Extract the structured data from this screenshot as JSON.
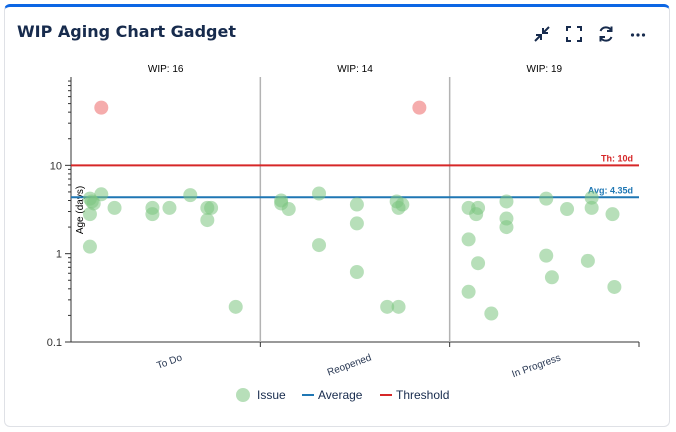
{
  "gadget": {
    "title": "WIP Aging Chart Gadget",
    "toolbar": {
      "minimize": "minimize-icon",
      "fullscreen": "fullscreen-icon",
      "refresh": "refresh-icon",
      "more": "more-icon"
    }
  },
  "chart_data": {
    "type": "scatter",
    "title": "",
    "xlabel": "",
    "ylabel": "Age (days)",
    "yscale": "log",
    "ylim": [
      0.1,
      100
    ],
    "y_ticks": [
      {
        "value": 10,
        "label": "10"
      },
      {
        "value": 1,
        "label": "1"
      },
      {
        "value": 0.1,
        "label": "0.1"
      }
    ],
    "colors": {
      "issue": "#7cc47f",
      "issue_over_threshold": "#f08080",
      "average": "#1f77b4",
      "threshold": "#d62728"
    },
    "average": {
      "value": 4.35,
      "label": "Avg: 4.35d"
    },
    "threshold": {
      "value": 10,
      "label": "Th: 10d"
    },
    "legend": [
      {
        "name": "Issue",
        "kind": "dot"
      },
      {
        "name": "Average",
        "kind": "line"
      },
      {
        "name": "Threshold",
        "kind": "line"
      }
    ],
    "columns": [
      {
        "name": "To Do",
        "wip_label": "WIP: 16",
        "points": [
          {
            "jitter": 0.16,
            "age": 45
          },
          {
            "jitter": 0.1,
            "age": 4.2
          },
          {
            "jitter": 0.11,
            "age": 3.9
          },
          {
            "jitter": 0.12,
            "age": 3.7
          },
          {
            "jitter": 0.16,
            "age": 4.7
          },
          {
            "jitter": 0.23,
            "age": 3.3
          },
          {
            "jitter": 0.1,
            "age": 2.8
          },
          {
            "jitter": 0.43,
            "age": 3.3
          },
          {
            "jitter": 0.43,
            "age": 2.8
          },
          {
            "jitter": 0.52,
            "age": 3.3
          },
          {
            "jitter": 0.63,
            "age": 4.6
          },
          {
            "jitter": 0.72,
            "age": 3.3
          },
          {
            "jitter": 0.74,
            "age": 3.3
          },
          {
            "jitter": 0.72,
            "age": 2.4
          },
          {
            "jitter": 0.1,
            "age": 1.2
          },
          {
            "jitter": 0.87,
            "age": 0.25
          }
        ]
      },
      {
        "name": "Reopened",
        "wip_label": "WIP: 14",
        "points": [
          {
            "jitter": 0.84,
            "age": 45
          },
          {
            "jitter": 0.11,
            "age": 4.0
          },
          {
            "jitter": 0.11,
            "age": 3.7
          },
          {
            "jitter": 0.15,
            "age": 3.2
          },
          {
            "jitter": 0.31,
            "age": 4.8
          },
          {
            "jitter": 0.51,
            "age": 3.6
          },
          {
            "jitter": 0.72,
            "age": 3.9
          },
          {
            "jitter": 0.75,
            "age": 3.6
          },
          {
            "jitter": 0.73,
            "age": 3.3
          },
          {
            "jitter": 0.51,
            "age": 2.2
          },
          {
            "jitter": 0.31,
            "age": 1.25
          },
          {
            "jitter": 0.51,
            "age": 0.62
          },
          {
            "jitter": 0.67,
            "age": 0.25
          },
          {
            "jitter": 0.73,
            "age": 0.25
          }
        ]
      },
      {
        "name": "In Progress",
        "wip_label": "WIP: 19",
        "points": [
          {
            "jitter": 0.1,
            "age": 3.3
          },
          {
            "jitter": 0.15,
            "age": 3.3
          },
          {
            "jitter": 0.14,
            "age": 2.8
          },
          {
            "jitter": 0.3,
            "age": 3.9
          },
          {
            "jitter": 0.3,
            "age": 2.5
          },
          {
            "jitter": 0.3,
            "age": 2.0
          },
          {
            "jitter": 0.51,
            "age": 4.2
          },
          {
            "jitter": 0.62,
            "age": 3.2
          },
          {
            "jitter": 0.75,
            "age": 4.3
          },
          {
            "jitter": 0.75,
            "age": 3.3
          },
          {
            "jitter": 0.86,
            "age": 2.8
          },
          {
            "jitter": 0.1,
            "age": 1.45
          },
          {
            "jitter": 0.15,
            "age": 0.78
          },
          {
            "jitter": 0.51,
            "age": 0.95
          },
          {
            "jitter": 0.54,
            "age": 0.54
          },
          {
            "jitter": 0.73,
            "age": 0.83
          },
          {
            "jitter": 0.87,
            "age": 0.42
          },
          {
            "jitter": 0.1,
            "age": 0.37
          },
          {
            "jitter": 0.22,
            "age": 0.21
          }
        ]
      }
    ]
  }
}
